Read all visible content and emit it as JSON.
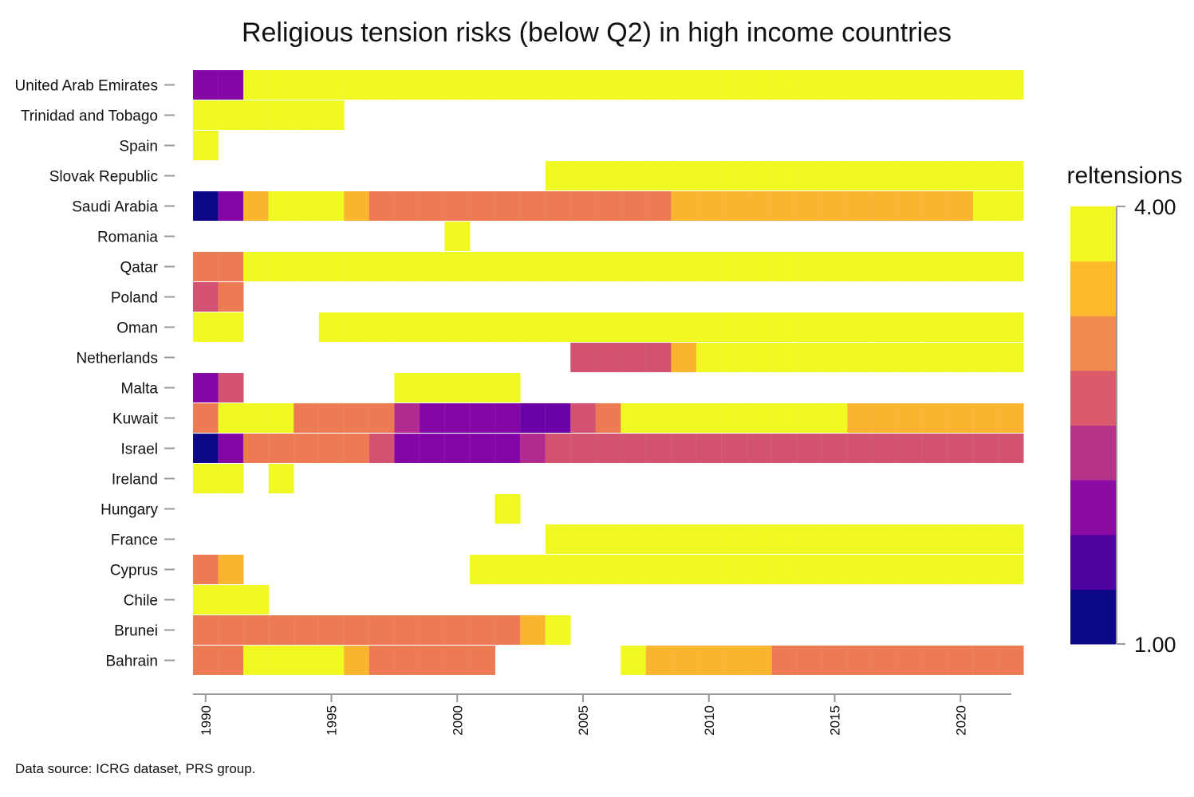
{
  "chart_data": {
    "type": "heatmap",
    "title": "Religious tension risks (below Q2) in high income countries",
    "source": "Data source: ICRG dataset, PRS group.",
    "legend_title": "reltensions",
    "color_range": [
      1,
      4
    ],
    "color_range_labels": [
      "1.00",
      "4.00"
    ],
    "legend_placement": "right",
    "palette": [
      "#0d0887",
      "#4c02a1",
      "#7e03a8",
      "#a92395",
      "#cc4778",
      "#e66c5c",
      "#f89540",
      "#fdc328",
      "#f0f921"
    ],
    "color_steps": [
      "#0d0887",
      "#4e03a0",
      "#8c0ba5",
      "#b7338a",
      "#dc5b6a",
      "#f2894e",
      "#fdbb2c",
      "#f0f921"
    ],
    "x_start": 1990,
    "x_end": 2022,
    "x_ticks": [
      1990,
      1995,
      2000,
      2005,
      2010,
      2015,
      2020
    ],
    "x_tick_labels": [
      "1990",
      "1995",
      "2000",
      "2005",
      "2010",
      "2015",
      "2020"
    ],
    "rows": [
      {
        "country": "United Arab Emirates",
        "start": 1990,
        "values": [
          1.8,
          1.8,
          4,
          4,
          4,
          4,
          4,
          4,
          4,
          4,
          4,
          4,
          4,
          4,
          4,
          4,
          4,
          4,
          4,
          4,
          4,
          4,
          4,
          4,
          4,
          4,
          4,
          4,
          4,
          4,
          4,
          4,
          4
        ]
      },
      {
        "country": "Trinidad and Tobago",
        "start": 1990,
        "values": [
          4,
          4,
          4,
          4,
          4,
          4
        ]
      },
      {
        "country": "Spain",
        "start": 1990,
        "values": [
          4
        ]
      },
      {
        "country": "Slovak Republic",
        "start": 2004,
        "values": [
          4,
          4,
          4,
          4,
          4,
          4,
          4,
          4,
          4,
          4,
          4,
          4,
          4,
          4,
          4,
          4,
          4,
          4,
          4
        ]
      },
      {
        "country": "Saudi Arabia",
        "start": 1990,
        "values": [
          1,
          1.8,
          3.5,
          4,
          4,
          4,
          3.5,
          3,
          3,
          3,
          3,
          3,
          3,
          3,
          3,
          3,
          3,
          3,
          3,
          3.5,
          3.5,
          3.5,
          3.5,
          3.5,
          3.5,
          3.5,
          3.5,
          3.5,
          3.5,
          3.5,
          3.5,
          4,
          4
        ]
      },
      {
        "country": "Romania",
        "start": 2000,
        "values": [
          4
        ]
      },
      {
        "country": "Qatar",
        "start": 1990,
        "values": [
          3,
          3,
          4,
          4,
          4,
          4,
          4,
          4,
          4,
          4,
          4,
          4,
          4,
          4,
          4,
          4,
          4,
          4,
          4,
          4,
          4,
          4,
          4,
          4,
          4,
          4,
          4,
          4,
          4,
          4,
          4,
          4,
          4
        ]
      },
      {
        "country": "Poland",
        "start": 1990,
        "values": [
          2.6,
          3
        ]
      },
      {
        "country": "Oman",
        "start": 1990,
        "values": [
          4,
          4,
          null,
          null,
          null,
          4,
          4,
          4,
          4,
          4,
          4,
          4,
          4,
          4,
          4,
          4,
          4,
          4,
          4,
          4,
          4,
          4,
          4,
          4,
          4,
          4,
          4,
          4,
          4,
          4,
          4,
          4,
          4
        ]
      },
      {
        "country": "Netherlands",
        "start": 2005,
        "values": [
          2.6,
          2.6,
          2.6,
          2.6,
          3.5,
          4,
          4,
          4,
          4,
          4,
          4,
          4,
          4,
          4,
          4,
          4,
          4,
          4
        ]
      },
      {
        "country": "Malta",
        "start": 1990,
        "values": [
          1.8,
          2.6,
          null,
          null,
          null,
          null,
          null,
          null,
          4,
          4,
          4,
          4,
          4
        ]
      },
      {
        "country": "Kuwait",
        "start": 1990,
        "values": [
          3,
          4,
          4,
          4,
          3,
          3,
          3,
          3,
          2.2,
          1.8,
          1.8,
          1.8,
          1.8,
          1.6,
          1.6,
          2.6,
          3,
          4,
          4,
          4,
          4,
          4,
          4,
          4,
          4,
          4,
          3.5,
          3.5,
          3.5,
          3.5,
          3.5,
          3.5,
          3.5
        ]
      },
      {
        "country": "Israel",
        "start": 1990,
        "values": [
          1,
          1.8,
          3,
          3,
          3,
          3,
          3,
          2.6,
          1.8,
          1.8,
          1.8,
          1.8,
          1.8,
          2.2,
          2.6,
          2.6,
          2.6,
          2.6,
          2.6,
          2.6,
          2.6,
          2.6,
          2.6,
          2.6,
          2.6,
          2.6,
          2.6,
          2.6,
          2.6,
          2.6,
          2.6,
          2.6,
          2.6
        ]
      },
      {
        "country": "Ireland",
        "start": 1990,
        "values": [
          4,
          4,
          null,
          4
        ]
      },
      {
        "country": "Hungary",
        "start": 2002,
        "values": [
          4
        ]
      },
      {
        "country": "France",
        "start": 2004,
        "values": [
          4,
          4,
          4,
          4,
          4,
          4,
          4,
          4,
          4,
          4,
          4,
          4,
          4,
          4,
          4,
          4,
          4,
          4,
          4
        ]
      },
      {
        "country": "Cyprus",
        "start": 1990,
        "values": [
          3,
          3.5,
          null,
          null,
          null,
          null,
          null,
          null,
          null,
          null,
          null,
          4,
          4,
          4,
          4,
          4,
          4,
          4,
          4,
          4,
          4,
          4,
          4,
          4,
          4,
          4,
          4,
          4,
          4,
          4,
          4,
          4,
          4
        ]
      },
      {
        "country": "Chile",
        "start": 1990,
        "values": [
          4,
          4,
          4
        ]
      },
      {
        "country": "Brunei",
        "start": 1990,
        "values": [
          3,
          3,
          3,
          3,
          3,
          3,
          3,
          3,
          3,
          3,
          3,
          3,
          3,
          3.5,
          4
        ]
      },
      {
        "country": "Bahrain",
        "start": 1990,
        "values": [
          3,
          3,
          4,
          4,
          4,
          4,
          3.5,
          3,
          3,
          3,
          3,
          3,
          null,
          null,
          null,
          null,
          null,
          4,
          3.5,
          3.5,
          3.5,
          3.5,
          3.5,
          3,
          3,
          3,
          3,
          3,
          3,
          3,
          3,
          3,
          3
        ]
      }
    ]
  }
}
